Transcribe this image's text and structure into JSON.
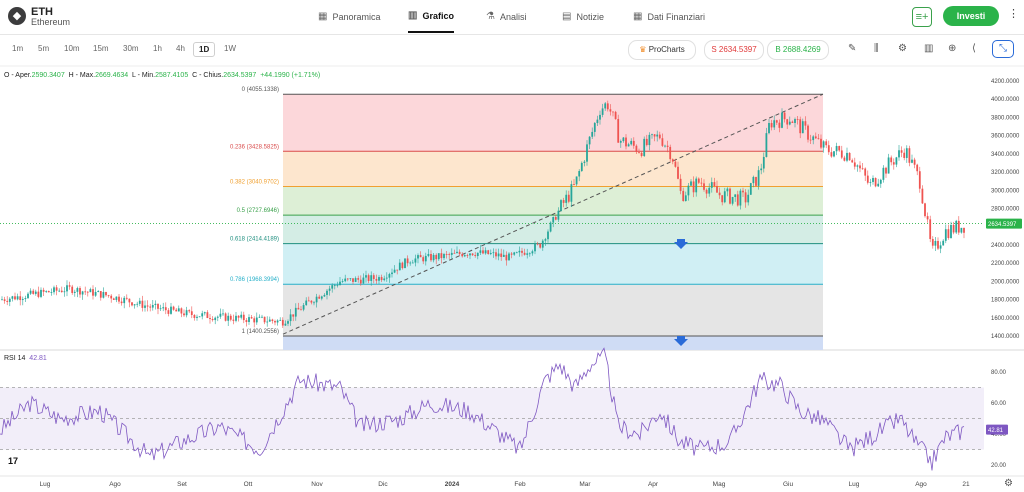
{
  "header": {
    "symbol": "ETH",
    "name": "Ethereum",
    "logo_glyph": "◆",
    "nav": [
      {
        "label": "Panoramica",
        "icon": "grid-icon",
        "glyph": "▦"
      },
      {
        "label": "Grafico",
        "icon": "candle-icon",
        "glyph": "▥"
      },
      {
        "label": "Analisi",
        "icon": "flask-icon",
        "glyph": "⚗"
      },
      {
        "label": "Notizie",
        "icon": "news-icon",
        "glyph": "▤"
      },
      {
        "label": "Dati Finanziari",
        "icon": "table-icon",
        "glyph": "▦"
      }
    ],
    "watch_glyph": "≡+",
    "invest_label": "Investi",
    "more_glyph": "⋮"
  },
  "timeframes": [
    "1m",
    "5m",
    "10m",
    "15m",
    "30m",
    "1h",
    "4h",
    "1D",
    "1W"
  ],
  "selected_timeframe": "1D",
  "prochart": {
    "label": "ProCharts",
    "icon": "crown-icon",
    "glyph": "♛"
  },
  "sell": {
    "label": "S 2634.5397",
    "color": "#e03a3a"
  },
  "buy": {
    "label": "B 2688.4269",
    "color": "#2bb34a"
  },
  "tools": [
    {
      "name": "pencil-icon",
      "glyph": "✎"
    },
    {
      "name": "indicator-icon",
      "glyph": "⫼"
    },
    {
      "name": "settings-icon",
      "glyph": "⚙"
    },
    {
      "name": "bar-chart-icon",
      "glyph": "▥"
    },
    {
      "name": "add-icon",
      "glyph": "⊕"
    },
    {
      "name": "share-icon",
      "glyph": "⟨"
    },
    {
      "name": "collapse-icon",
      "glyph": "⤡"
    }
  ],
  "ohlc": {
    "open_label": "O - Aper.",
    "open": "2590.3407",
    "high_label": "H - Max.",
    "high": "2669.4634",
    "low_label": "L - Min.",
    "low": "2587.4105",
    "close_label": "C - Chius.",
    "close": "2634.5397",
    "change": "+44.1990 (+1.71%)"
  },
  "fib_levels": [
    {
      "label": "0 (4055.1338)",
      "value": 4055.1338,
      "color": "#555555",
      "fill": "#fbd0d4"
    },
    {
      "label": "0.236 (3428.5825)",
      "value": 3428.5825,
      "color": "#d94c4c",
      "fill": "#fde2c6"
    },
    {
      "label": "0.382 (3040.9702)",
      "value": 3040.9702,
      "color": "#f0a030",
      "fill": "#d7eccf"
    },
    {
      "label": "0.5 (2727.6946)",
      "value": 2727.6946,
      "color": "#3aa14b",
      "fill": "#cdeae1"
    },
    {
      "label": "0.618 (2414.4189)",
      "value": 2414.4189,
      "color": "#1f8f7f",
      "fill": "#c8ecf2"
    },
    {
      "label": "0.786 (1968.3994)",
      "value": 1968.3994,
      "color": "#27b0c9",
      "fill": "#e0e0e0"
    },
    {
      "label": "1 (1400.2556)",
      "value": 1400.2556,
      "color": "#555555",
      "fill": "#cfdcf5"
    }
  ],
  "price_ticks": [
    "4200.0000",
    "4000.0000",
    "3800.0000",
    "3600.0000",
    "3400.0000",
    "3200.0000",
    "3000.0000",
    "2800.0000",
    "2600.0000",
    "2400.0000",
    "2200.0000",
    "2000.0000",
    "1800.0000",
    "1600.0000",
    "1400.0000"
  ],
  "current_price": "2634.5397",
  "rsi": {
    "label": "RSI 14",
    "value": "42.81",
    "ticks": [
      "80.00",
      "60.00",
      "40.00",
      "20.00"
    ]
  },
  "x_ticks": [
    "Lug",
    "Ago",
    "Set",
    "Ott",
    "Nov",
    "Dic",
    "2024",
    "Feb",
    "Mar",
    "Apr",
    "Mag",
    "Giu",
    "Lug",
    "Ago",
    "21"
  ],
  "tv_logo": "17",
  "settings_glyph": "⚙",
  "colors": {
    "up": "#26a69a",
    "down": "#ef5350",
    "accent": "#2a6bd8",
    "rsi": "#7e57c2"
  }
}
